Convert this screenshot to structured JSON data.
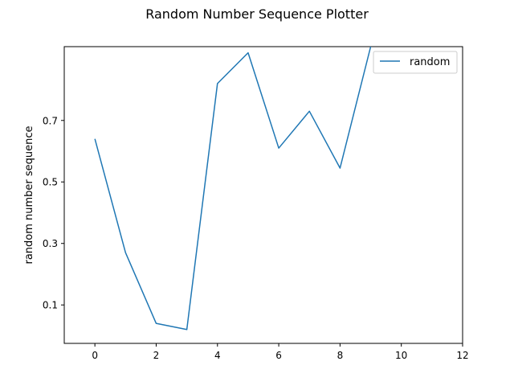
{
  "chart_data": {
    "type": "line",
    "title": "Random Number Sequence Plotter",
    "xlabel": "",
    "ylabel": "random number sequence",
    "xlim": [
      -1,
      12
    ],
    "ylim": [
      -0.025,
      0.94
    ],
    "xticks": [
      0,
      2,
      4,
      6,
      8,
      10,
      12
    ],
    "yticks": [
      0.1,
      0.3,
      0.5,
      0.7
    ],
    "ytick_labels": [
      "0.1",
      "0.3",
      "0.5",
      "0.7"
    ],
    "grid": false,
    "legend_position": "top-right",
    "series": [
      {
        "name": "random",
        "color": "#1f77b4",
        "x": [
          0,
          1,
          2,
          3,
          4,
          5,
          6,
          7,
          8,
          9
        ],
        "y": [
          0.64,
          0.27,
          0.04,
          0.02,
          0.82,
          0.92,
          0.61,
          0.73,
          0.545,
          0.94
        ]
      }
    ]
  }
}
